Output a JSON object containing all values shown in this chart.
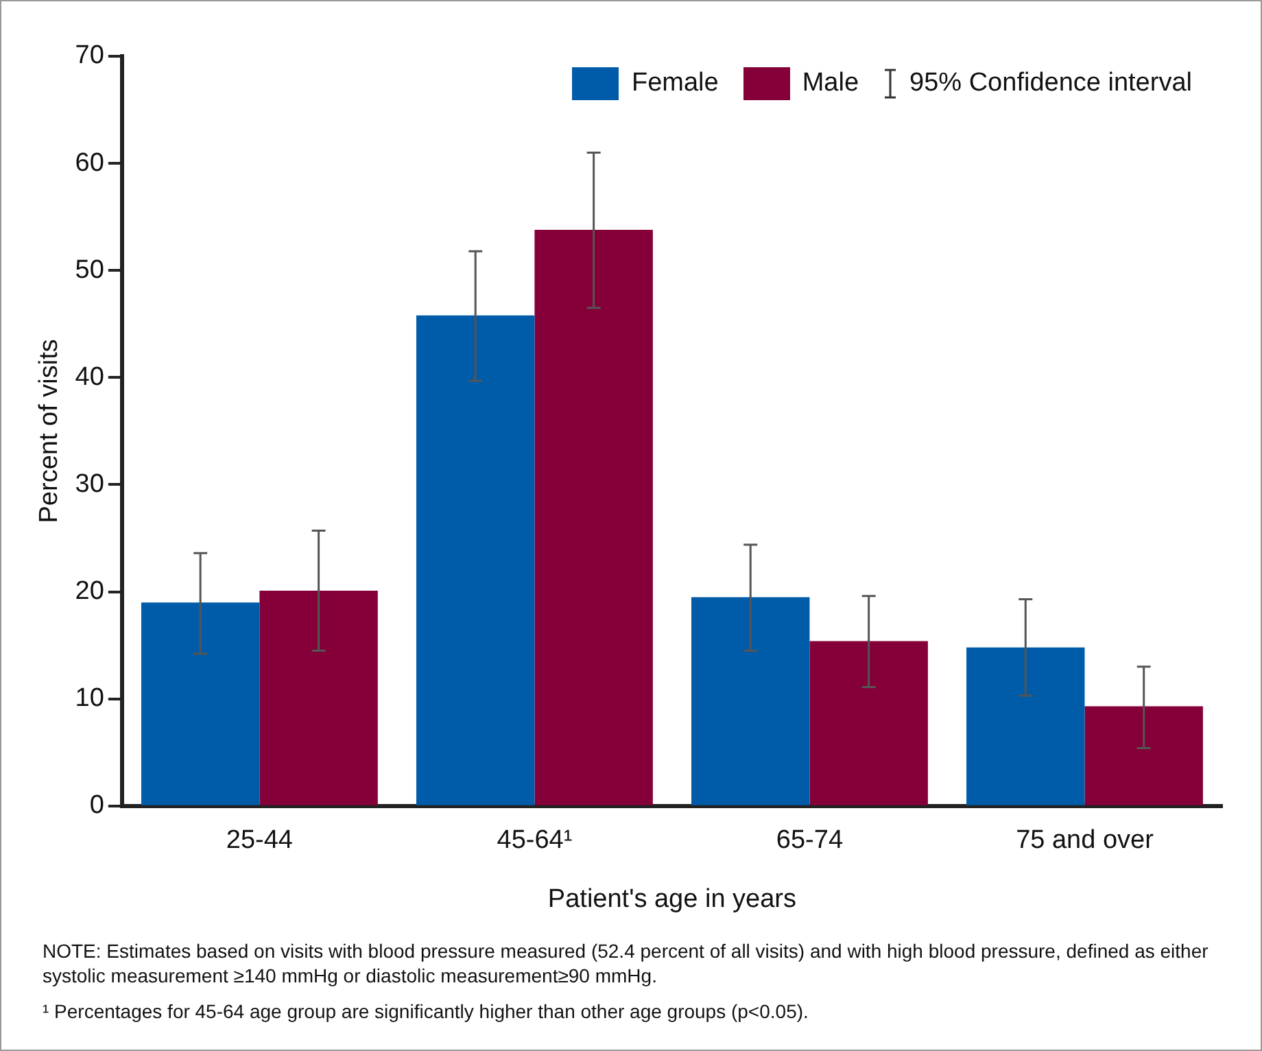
{
  "chart_data": {
    "type": "bar",
    "categories": [
      "25-44",
      "45-64¹",
      "65-74",
      "75 and over"
    ],
    "series": [
      {
        "name": "Female",
        "color": "#005ca8",
        "values": [
          19.0,
          45.8,
          19.5,
          14.8
        ],
        "errors": [
          [
            14.2,
            23.6
          ],
          [
            39.7,
            51.8
          ],
          [
            14.5,
            24.4
          ],
          [
            10.3,
            19.3
          ]
        ]
      },
      {
        "name": "Male",
        "color": "#850038",
        "values": [
          20.1,
          53.8,
          15.4,
          9.3
        ],
        "errors": [
          [
            14.5,
            25.7
          ],
          [
            46.5,
            61.0
          ],
          [
            11.1,
            19.6
          ],
          [
            5.4,
            13.0
          ]
        ]
      }
    ],
    "xlabel": "Patient's age in years",
    "ylabel": "Percent of visits",
    "ylim": [
      0,
      70
    ],
    "yticks": [
      0,
      10,
      20,
      30,
      40,
      50,
      60,
      70
    ],
    "grid": false,
    "legend": "top right",
    "annotations": [
      "95% Confidence interval",
      "NOTE: Estimates based on visits with blood pressure measured (52.4 percent of all visits) and with high blood pressure, defined as either systolic measurement ≥140  mmHg or diastolic measurement≥90 mmHg.",
      "¹ Percentages for 45-64 age group are significantly higher than other age groups (p<0.05)."
    ]
  }
}
